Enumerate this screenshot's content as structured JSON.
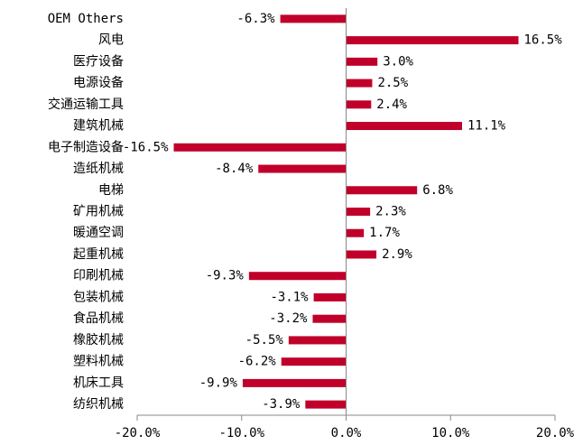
{
  "chart_data": {
    "type": "barh",
    "categories": [
      "OEM Others",
      "风电",
      "医疗设备",
      "电源设备",
      "交通运输工具",
      "建筑机械",
      "电子制造设备",
      "造纸机械",
      "电梯",
      "矿用机械",
      "暖通空调",
      "起重机械",
      "印刷机械",
      "包装机械",
      "食品机械",
      "橡胶机械",
      "塑料机械",
      "机床工具",
      "纺织机械"
    ],
    "values": [
      -6.3,
      16.5,
      3.0,
      2.5,
      2.4,
      11.1,
      -16.5,
      -8.4,
      6.8,
      2.3,
      1.7,
      2.9,
      -9.3,
      -3.1,
      -3.2,
      -5.5,
      -6.2,
      -9.9,
      -3.9
    ],
    "value_labels": [
      "-6.3%",
      "16.5%",
      "3.0%",
      "2.5%",
      "2.4%",
      "11.1%",
      "-16.5%",
      "-8.4%",
      "6.8%",
      "2.3%",
      "1.7%",
      "2.9%",
      "-9.3%",
      "-3.1%",
      "-3.2%",
      "-5.5%",
      "-6.2%",
      "-9.9%",
      "-3.9%"
    ],
    "color": "#c0002a",
    "xlim": [
      -20,
      20
    ],
    "xticks": [
      {
        "value": -20,
        "label": "-20.0%"
      },
      {
        "value": -10,
        "label": "-10.0%"
      },
      {
        "value": 0,
        "label": "0.0%"
      },
      {
        "value": 10,
        "label": "10.0%"
      },
      {
        "value": 20,
        "label": "20.0%"
      }
    ]
  }
}
